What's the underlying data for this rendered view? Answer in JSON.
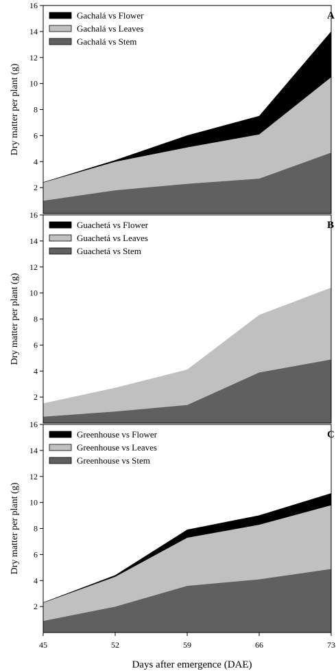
{
  "chart_data": [
    {
      "type": "area",
      "panel_label": "A",
      "ylabel": "Dry matter per plant (g)",
      "ylim": [
        0,
        16
      ],
      "yticks": [
        2,
        4,
        6,
        8,
        10,
        12,
        14,
        16
      ],
      "x": [
        45,
        52,
        59,
        66,
        73
      ],
      "stacked": true,
      "legend_position": "top-left",
      "series": [
        {
          "name": "Gachalá vs Flower",
          "color": "#000000",
          "values": [
            0.0,
            0.1,
            0.9,
            1.4,
            3.5
          ]
        },
        {
          "name": "Gachalá vs Leaves",
          "color": "#c0c0c0",
          "values": [
            1.4,
            2.2,
            2.8,
            3.4,
            5.8
          ]
        },
        {
          "name": "Gachalá vs Stem",
          "color": "#606060",
          "values": [
            1.0,
            1.8,
            2.3,
            2.7,
            4.7
          ]
        }
      ]
    },
    {
      "type": "area",
      "panel_label": "B",
      "ylabel": "Dry matter per plant (g)",
      "ylim": [
        0,
        16
      ],
      "yticks": [
        2,
        4,
        6,
        8,
        10,
        12,
        14,
        16
      ],
      "x": [
        45,
        52,
        59,
        66,
        73
      ],
      "stacked": true,
      "legend_position": "top-left",
      "series": [
        {
          "name": "Guachetá vs Flower",
          "color": "#000000",
          "values": [
            0,
            0,
            0,
            0,
            0
          ]
        },
        {
          "name": "Guachetá vs Leaves",
          "color": "#c0c0c0",
          "values": [
            1.0,
            1.8,
            2.7,
            4.4,
            5.5
          ]
        },
        {
          "name": "Guachetá vs Stem",
          "color": "#606060",
          "values": [
            0.5,
            0.9,
            1.4,
            3.9,
            4.9
          ]
        }
      ]
    },
    {
      "type": "area",
      "panel_label": "C",
      "ylabel": "Dry matter per plant (g)",
      "xlabel": "Days after emergence (DAE)",
      "ylim": [
        0,
        16
      ],
      "yticks": [
        2,
        4,
        6,
        8,
        10,
        12,
        14,
        16
      ],
      "x": [
        45,
        52,
        59,
        66,
        73
      ],
      "xticks": [
        "45",
        "52",
        "59",
        "66",
        "73"
      ],
      "stacked": true,
      "legend_position": "top-left",
      "series": [
        {
          "name": "Greenhouse vs Flower",
          "color": "#000000",
          "values": [
            0.0,
            0.1,
            0.6,
            0.7,
            0.9
          ]
        },
        {
          "name": "Greenhouse vs Leaves",
          "color": "#c0c0c0",
          "values": [
            1.4,
            2.3,
            3.7,
            4.2,
            4.9
          ]
        },
        {
          "name": "Greenhouse vs Stem",
          "color": "#606060",
          "values": [
            0.9,
            2.0,
            3.6,
            4.1,
            4.9
          ]
        }
      ]
    }
  ]
}
